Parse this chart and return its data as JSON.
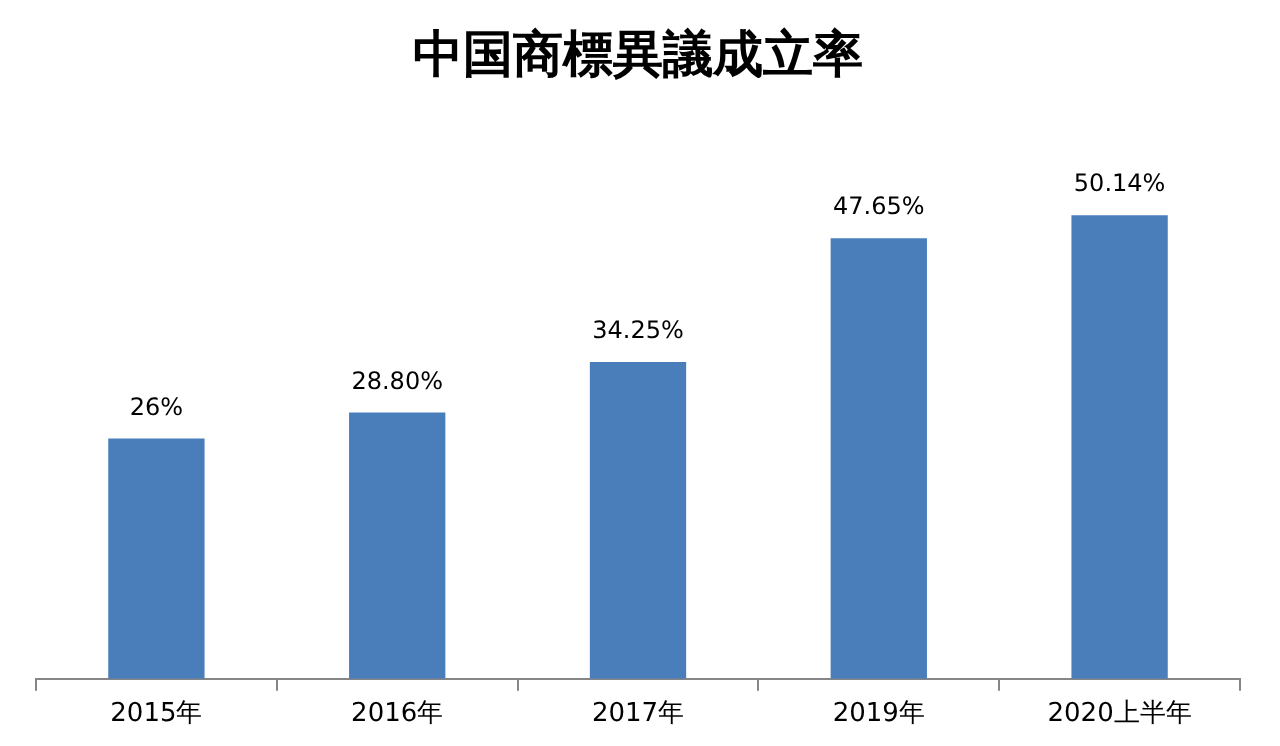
{
  "chart_data": {
    "type": "bar",
    "title": "中国商標異議成立率",
    "categories": [
      "2015年",
      "2016年",
      "2017年",
      "2019年",
      "2020上半年"
    ],
    "values": [
      26,
      28.8,
      34.25,
      47.65,
      50.14
    ],
    "value_labels": [
      "26%",
      "28.80%",
      "34.25%",
      "47.65%",
      "50.14%"
    ],
    "color": "#4a7ebb",
    "grid": false,
    "legend": false
  }
}
